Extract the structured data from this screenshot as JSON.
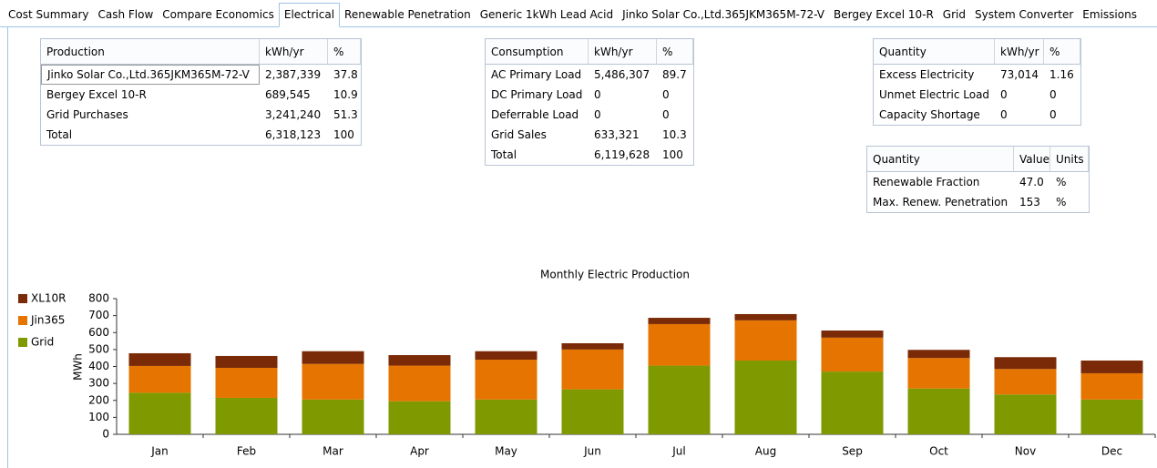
{
  "tabs": [
    "Cost Summary",
    "Cash Flow",
    "Compare Economics",
    "Electrical",
    "Renewable Penetration",
    "Generic 1kWh Lead Acid",
    "Jinko Solar Co.,Ltd.365JKM365M-72-V",
    "Bergey Excel 10-R",
    "Grid",
    "System Converter",
    "Emissions"
  ],
  "active_tab": "Electrical",
  "tables": [
    {
      "header": [
        "Production",
        "kWh/yr",
        "%"
      ],
      "rows": [
        [
          "Jinko Solar Co.,Ltd.365JKM365M-72-V",
          "2,387,339",
          "37.8"
        ],
        [
          "Bergey Excel 10-R",
          "689,545",
          "10.9"
        ],
        [
          "Grid Purchases",
          "3,241,240",
          "51.3"
        ],
        [
          "Total",
          "6,318,123",
          "100"
        ]
      ]
    },
    {
      "header": [
        "Consumption",
        "kWh/yr",
        "%"
      ],
      "rows": [
        [
          "AC Primary Load",
          "5,486,307",
          "89.7"
        ],
        [
          "DC Primary Load",
          "0",
          "0"
        ],
        [
          "Deferrable Load",
          "0",
          "0"
        ],
        [
          "Grid Sales",
          "633,321",
          "10.3"
        ],
        [
          "Total",
          "6,119,628",
          "100"
        ]
      ]
    },
    {
      "header": [
        "Quantity",
        "kWh/yr",
        "%"
      ],
      "rows": [
        [
          "Excess Electricity",
          "73,014",
          "1.16"
        ],
        [
          "Unmet Electric Load",
          "0",
          "0"
        ],
        [
          "Capacity Shortage",
          "0",
          "0"
        ]
      ]
    },
    {
      "header": [
        "Quantity",
        "Value",
        "Units"
      ],
      "rows": [
        [
          "Renewable Fraction",
          "47.0",
          "%"
        ],
        [
          "Max. Renew. Penetration",
          "153",
          "%"
        ]
      ]
    }
  ],
  "chart_data": {
    "type": "stacked_bar",
    "title": "Monthly Electric Production",
    "y_label": "MWh",
    "categories": [
      "Jan",
      "Feb",
      "Mar",
      "Apr",
      "May",
      "Jun",
      "Jul",
      "Aug",
      "Sep",
      "Oct",
      "Nov",
      "Dec"
    ],
    "series": [
      {
        "name": "XL10R",
        "color": "#7a2a06",
        "values": [
          75,
          70,
          75,
          62,
          50,
          37,
          37,
          37,
          42,
          48,
          70,
          75
        ]
      },
      {
        "name": "Jin365",
        "color": "#e57400",
        "values": [
          158,
          177,
          210,
          210,
          235,
          235,
          245,
          237,
          200,
          180,
          150,
          155
        ]
      },
      {
        "name": "Grid",
        "color": "#7e9a00",
        "values": [
          245,
          215,
          205,
          195,
          205,
          265,
          405,
          435,
          370,
          270,
          235,
          205
        ]
      }
    ],
    "ylim": [
      0,
      800
    ],
    "yticks": [
      0,
      100,
      200,
      300,
      400,
      500,
      600,
      700,
      800
    ],
    "grid": false,
    "legend": "top-left"
  }
}
